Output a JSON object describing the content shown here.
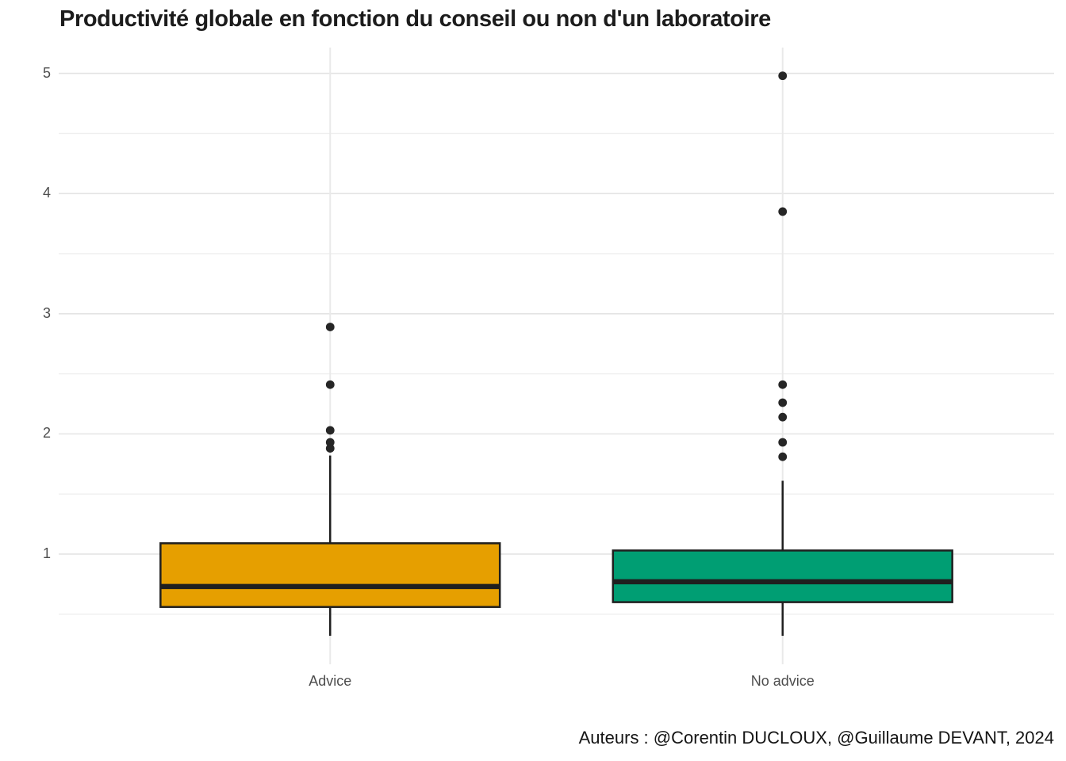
{
  "title": "Productivité globale en fonction du conseil ou non d'un laboratoire",
  "caption": "Auteurs : @Corentin DUCLOUX, @Guillaume DEVANT, 2024",
  "colors": {
    "advice_fill": "#E69F00",
    "no_advice_fill": "#009E73",
    "box_stroke": "#1f1f1f",
    "outlier_fill": "#262626",
    "grid_major": "#e4e4e4",
    "grid_minor": "#efefef",
    "grid_vertical": "#e9e9e9",
    "axis_text": "#4d4d4d",
    "background": "#ffffff"
  },
  "chart_data": {
    "type": "boxplot",
    "title": "Productivité globale en fonction du conseil ou non d'un laboratoire",
    "xlabel": "",
    "ylabel": "",
    "categories": [
      "Advice",
      "No advice"
    ],
    "ylim": [
      0.083,
      5.215
    ],
    "yticks": [
      "1",
      "2",
      "3",
      "4",
      "5"
    ],
    "ytick_values": [
      1,
      2,
      3,
      4,
      5
    ],
    "yticks_minor": [
      0.5,
      1.5,
      2.5,
      3.5,
      4.5
    ],
    "grid": "on",
    "legend": "none",
    "series": [
      {
        "name": "Advice",
        "fill": "#E69F00",
        "lower_whisker": 0.32,
        "q1": 0.56,
        "median": 0.73,
        "q3": 1.09,
        "upper_whisker": 1.82,
        "outliers": [
          1.88,
          1.93,
          2.03,
          2.41,
          2.89
        ]
      },
      {
        "name": "No advice",
        "fill": "#009E73",
        "lower_whisker": 0.32,
        "q1": 0.6,
        "median": 0.77,
        "q3": 1.03,
        "upper_whisker": 1.61,
        "outliers": [
          1.81,
          1.93,
          2.14,
          2.26,
          2.41,
          3.85,
          4.98
        ]
      }
    ]
  }
}
